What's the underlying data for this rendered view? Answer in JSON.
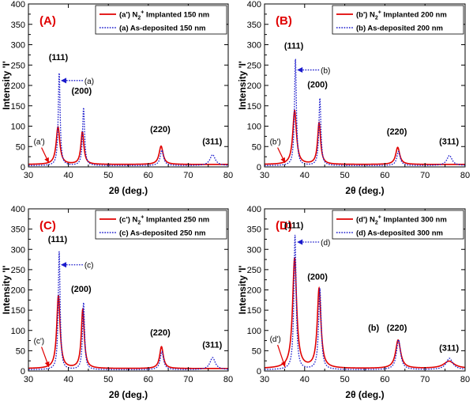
{
  "chart_data": [
    {
      "type": "line",
      "panel": "(A)",
      "xlabel": "2θ (deg.)",
      "ylabel": "Intensity 'I'",
      "xlim": [
        30,
        80
      ],
      "ylim": [
        0,
        400
      ],
      "xticks": [
        30,
        40,
        50,
        60,
        70,
        80
      ],
      "yticks": [
        0,
        50,
        100,
        150,
        200,
        250,
        300,
        350,
        400
      ],
      "legend_position": "top-right",
      "series": [
        {
          "name": "(a') N2+ Implanted 150 nm",
          "legend_main": "(a') N",
          "legend_sub": "2",
          "legend_sup": "+",
          "legend_rest": " Implanted 150 nm",
          "color": "#e00000",
          "style": "solid",
          "baseline": 6,
          "peaks": [
            {
              "x": 37.4,
              "y": 92,
              "w": 0.55
            },
            {
              "x": 43.5,
              "y": 80,
              "w": 0.45
            },
            {
              "x": 63.2,
              "y": 45,
              "w": 0.6
            }
          ]
        },
        {
          "name": "(a) As-deposited 150 nm",
          "legend_main": "(a) As-deposited 150 nm",
          "color": "#1a1acc",
          "style": "dotted",
          "baseline": 3,
          "peaks": [
            {
              "x": 37.7,
              "y": 228,
              "w": 0.28
            },
            {
              "x": 43.8,
              "y": 142,
              "w": 0.3
            },
            {
              "x": 63.4,
              "y": 38,
              "w": 0.5
            },
            {
              "x": 76.1,
              "y": 27,
              "w": 0.8
            }
          ]
        }
      ],
      "annotations": [
        {
          "text": "(111)",
          "x": 37.5,
          "y": 262
        },
        {
          "text": "(200)",
          "x": 43.3,
          "y": 180
        },
        {
          "text": "(220)",
          "x": 63.0,
          "y": 85
        },
        {
          "text": "(311)",
          "x": 76.0,
          "y": 55
        },
        {
          "text": "(a)",
          "x": 44.0,
          "y": 212,
          "arrow_to": [
            38.1,
            212
          ]
        },
        {
          "text": "(a')",
          "x": 31.3,
          "y": 63,
          "arrow_to": [
            35.1,
            10
          ]
        }
      ]
    },
    {
      "type": "line",
      "panel": "(B)",
      "xlabel": "2θ (deg.)",
      "ylabel": "Intensity 'I'",
      "xlim": [
        30,
        80
      ],
      "ylim": [
        0,
        400
      ],
      "xticks": [
        30,
        40,
        50,
        60,
        70,
        80
      ],
      "yticks": [
        0,
        50,
        100,
        150,
        200,
        250,
        300,
        350,
        400
      ],
      "legend_position": "top-right",
      "series": [
        {
          "name": "(b') N2+ Implanted 200 nm",
          "legend_main": "(b') N",
          "legend_sub": "2",
          "legend_sup": "+",
          "legend_rest": " Implanted 200 nm",
          "color": "#e00000",
          "style": "solid",
          "baseline": 6,
          "peaks": [
            {
              "x": 37.5,
              "y": 132,
              "w": 0.55
            },
            {
              "x": 43.6,
              "y": 102,
              "w": 0.45
            },
            {
              "x": 63.2,
              "y": 42,
              "w": 0.6
            }
          ]
        },
        {
          "name": "(b) As-deposited 200 nm",
          "legend_main": "(b) As-deposited 200 nm",
          "color": "#1a1acc",
          "style": "dotted",
          "baseline": 3,
          "peaks": [
            {
              "x": 37.7,
              "y": 262,
              "w": 0.28
            },
            {
              "x": 43.8,
              "y": 165,
              "w": 0.3
            },
            {
              "x": 63.4,
              "y": 35,
              "w": 0.5
            },
            {
              "x": 76.1,
              "y": 25,
              "w": 0.8
            }
          ]
        }
      ],
      "annotations": [
        {
          "text": "(111)",
          "x": 37.3,
          "y": 290
        },
        {
          "text": "(200)",
          "x": 43.2,
          "y": 195
        },
        {
          "text": "(220)",
          "x": 63.0,
          "y": 80
        },
        {
          "text": "(311)",
          "x": 76.0,
          "y": 55
        },
        {
          "text": "(b)",
          "x": 44.0,
          "y": 238,
          "arrow_to": [
            38.1,
            238
          ]
        },
        {
          "text": "(b')",
          "x": 31.3,
          "y": 63,
          "arrow_to": [
            35.1,
            10
          ]
        }
      ]
    },
    {
      "type": "line",
      "panel": "(C)",
      "xlabel": "2θ (deg.)",
      "ylabel": "Intensity 'I'",
      "xlim": [
        30,
        80
      ],
      "ylim": [
        0,
        400
      ],
      "xticks": [
        30,
        40,
        50,
        60,
        70,
        80
      ],
      "yticks": [
        0,
        50,
        100,
        150,
        200,
        250,
        300,
        350,
        400
      ],
      "legend_position": "top-right",
      "series": [
        {
          "name": "(c') N2+ Implanted 250 nm",
          "legend_main": "(c') N",
          "legend_sub": "2",
          "legend_sup": "+",
          "legend_rest": " Implanted 250 nm",
          "color": "#e00000",
          "style": "solid",
          "baseline": 6,
          "peaks": [
            {
              "x": 37.5,
              "y": 180,
              "w": 0.5
            },
            {
              "x": 43.6,
              "y": 145,
              "w": 0.45
            },
            {
              "x": 63.3,
              "y": 54,
              "w": 0.55
            }
          ]
        },
        {
          "name": "(c) As-deposited 250 nm",
          "legend_main": "(c) As-deposited 250 nm",
          "color": "#1a1acc",
          "style": "dotted",
          "baseline": 3,
          "peaks": [
            {
              "x": 37.7,
              "y": 292,
              "w": 0.28
            },
            {
              "x": 43.8,
              "y": 165,
              "w": 0.3
            },
            {
              "x": 63.4,
              "y": 45,
              "w": 0.5
            },
            {
              "x": 76.1,
              "y": 30,
              "w": 0.8
            }
          ]
        }
      ],
      "annotations": [
        {
          "text": "(111)",
          "x": 37.3,
          "y": 318
        },
        {
          "text": "(200)",
          "x": 43.2,
          "y": 195
        },
        {
          "text": "(220)",
          "x": 63.0,
          "y": 88
        },
        {
          "text": "(311)",
          "x": 76.0,
          "y": 58
        },
        {
          "text": "(c)",
          "x": 44.0,
          "y": 262,
          "arrow_to": [
            38.1,
            262
          ]
        },
        {
          "text": "(c')",
          "x": 31.3,
          "y": 75,
          "arrow_to": [
            35.1,
            10
          ]
        }
      ]
    },
    {
      "type": "line",
      "panel": "(D)",
      "xlabel": "2θ (deg.)",
      "ylabel": "Intensity 'I'",
      "xlim": [
        30,
        80
      ],
      "ylim": [
        0,
        400
      ],
      "xticks": [
        30,
        40,
        50,
        60,
        70,
        80
      ],
      "yticks": [
        0,
        50,
        100,
        150,
        200,
        250,
        300,
        350,
        400
      ],
      "legend_position": "top-right",
      "series": [
        {
          "name": "(d') N2+ Implanted 300 nm",
          "legend_main": "(d') N",
          "legend_sub": "2",
          "legend_sup": "+",
          "legend_rest": " Implanted 300 nm",
          "color": "#e00000",
          "style": "solid",
          "baseline": 6,
          "peaks": [
            {
              "x": 37.5,
              "y": 272,
              "w": 0.6
            },
            {
              "x": 43.6,
              "y": 196,
              "w": 0.55
            },
            {
              "x": 63.3,
              "y": 70,
              "w": 0.75
            },
            {
              "x": 76.0,
              "y": 18,
              "w": 1.6
            }
          ]
        },
        {
          "name": "(d) As-deposited 300 nm",
          "legend_main": "(d) As-deposited 300 nm",
          "color": "#1a1acc",
          "style": "dotted",
          "baseline": 3,
          "peaks": [
            {
              "x": 37.6,
              "y": 332,
              "w": 0.33
            },
            {
              "x": 43.8,
              "y": 200,
              "w": 0.38
            },
            {
              "x": 63.4,
              "y": 74,
              "w": 0.6
            },
            {
              "x": 76.1,
              "y": 28,
              "w": 1.0
            }
          ]
        }
      ],
      "annotations": [
        {
          "text": "(111)",
          "x": 37.3,
          "y": 352
        },
        {
          "text": "(200)",
          "x": 43.2,
          "y": 225
        },
        {
          "text": "(220)",
          "x": 63.0,
          "y": 100
        },
        {
          "text": "(311)",
          "x": 76.0,
          "y": 50
        },
        {
          "text": "(b)",
          "x": 57.2,
          "y": 100
        },
        {
          "text": "(d)",
          "x": 44.0,
          "y": 318,
          "arrow_to": [
            38.1,
            318
          ]
        },
        {
          "text": "(d')",
          "x": 31.3,
          "y": 80,
          "arrow_to": [
            35.1,
            10
          ]
        }
      ]
    }
  ]
}
